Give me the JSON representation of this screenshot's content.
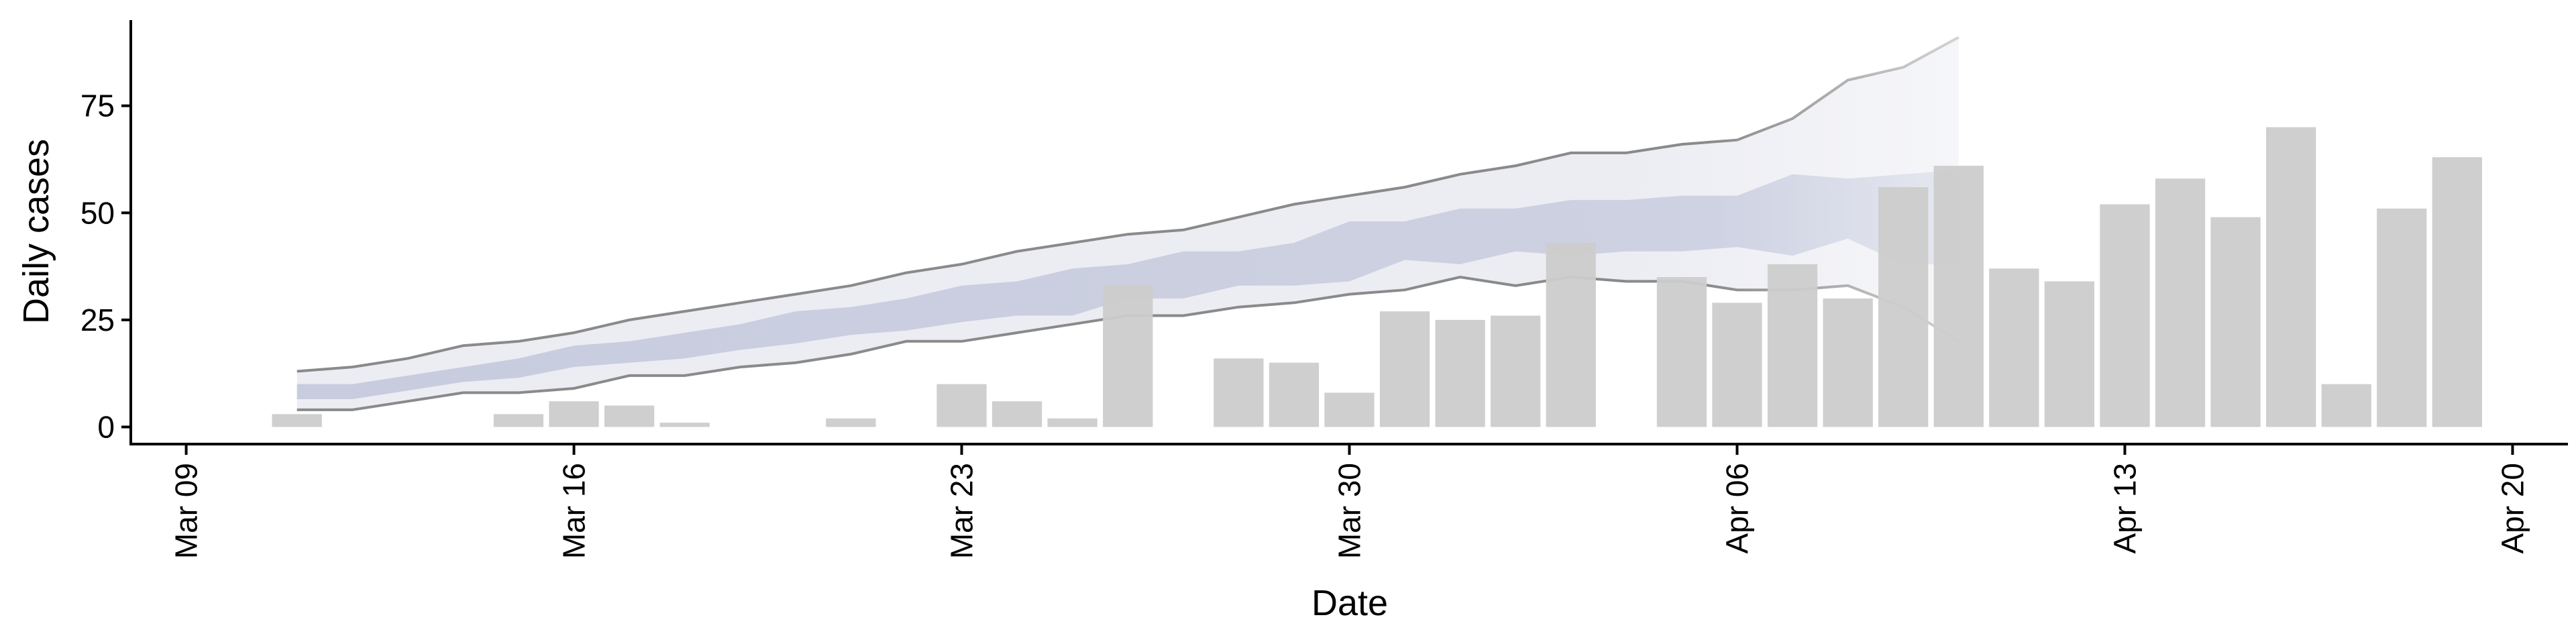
{
  "chart_data": {
    "type": "bar",
    "xlabel": "Date",
    "ylabel": "Daily cases",
    "x_ticks": [
      "Mar 09",
      "Mar 16",
      "Mar 23",
      "Mar 30",
      "Apr 06",
      "Apr 13",
      "Apr 20"
    ],
    "y_ticks": [
      "0",
      "25",
      "50",
      "75"
    ],
    "ylim": [
      -4,
      95
    ],
    "xlim": [
      "2020-03-08",
      "2020-04-21"
    ],
    "colors": {
      "bars": "#cccccc",
      "band_outer": "#ecedf3",
      "band_inner": "#c3c8dc",
      "band_lines": "#8a8a8a"
    },
    "daily_cases": {
      "dates": [
        "2020-03-11",
        "2020-03-15",
        "2020-03-16",
        "2020-03-17",
        "2020-03-18",
        "2020-03-21",
        "2020-03-23",
        "2020-03-24",
        "2020-03-25",
        "2020-03-26",
        "2020-03-28",
        "2020-03-29",
        "2020-03-30",
        "2020-03-31",
        "2020-04-01",
        "2020-04-02",
        "2020-04-03",
        "2020-04-05",
        "2020-04-06",
        "2020-04-07",
        "2020-04-08",
        "2020-04-09",
        "2020-04-10",
        "2020-04-11",
        "2020-04-12",
        "2020-04-13",
        "2020-04-14",
        "2020-04-15",
        "2020-04-16",
        "2020-04-17",
        "2020-04-18",
        "2020-04-19"
      ],
      "values": [
        3,
        3,
        6,
        5,
        1,
        2,
        10,
        6,
        2,
        33,
        16,
        15,
        8,
        27,
        25,
        26,
        43,
        35,
        29,
        38,
        30,
        56,
        61,
        37,
        34,
        52,
        58,
        49,
        70,
        10,
        51,
        63
      ]
    },
    "forecast": {
      "dates": [
        "2020-03-11",
        "2020-03-12",
        "2020-03-13",
        "2020-03-14",
        "2020-03-15",
        "2020-03-16",
        "2020-03-17",
        "2020-03-18",
        "2020-03-19",
        "2020-03-20",
        "2020-03-21",
        "2020-03-22",
        "2020-03-23",
        "2020-03-24",
        "2020-03-25",
        "2020-03-26",
        "2020-03-27",
        "2020-03-28",
        "2020-03-29",
        "2020-03-30",
        "2020-03-31",
        "2020-04-01",
        "2020-04-02",
        "2020-04-03",
        "2020-04-04",
        "2020-04-05",
        "2020-04-06",
        "2020-04-07",
        "2020-04-08",
        "2020-04-09",
        "2020-04-10"
      ],
      "lower_90": [
        4,
        4,
        6,
        8,
        8,
        9,
        12,
        12,
        14,
        15,
        17,
        20,
        20,
        22,
        24,
        26,
        26,
        28,
        29,
        31,
        32,
        35,
        33,
        35,
        34,
        34,
        32,
        32,
        33,
        28,
        20
      ],
      "upper_90": [
        13,
        14,
        16,
        19,
        20,
        22,
        25,
        27,
        29,
        31,
        33,
        36,
        38,
        41,
        43,
        45,
        46,
        49,
        52,
        54,
        56,
        59,
        61,
        64,
        64,
        66,
        67,
        72,
        81,
        84,
        91
      ],
      "lower_50": [
        6.5,
        6.5,
        8.5,
        10.5,
        11.5,
        14,
        15,
        16,
        18,
        19.5,
        21.5,
        22.5,
        24.5,
        26,
        26,
        30,
        30,
        33,
        33,
        34,
        39,
        38,
        41,
        40,
        41,
        41,
        42,
        40,
        44,
        38,
        38
      ],
      "upper_50": [
        10,
        10,
        12,
        14,
        16,
        19,
        20,
        22,
        24,
        27,
        28,
        30,
        33,
        34,
        37,
        38,
        41,
        41,
        43,
        48,
        48,
        51,
        51,
        53,
        53,
        54,
        54,
        59,
        58,
        59,
        60
      ]
    }
  }
}
